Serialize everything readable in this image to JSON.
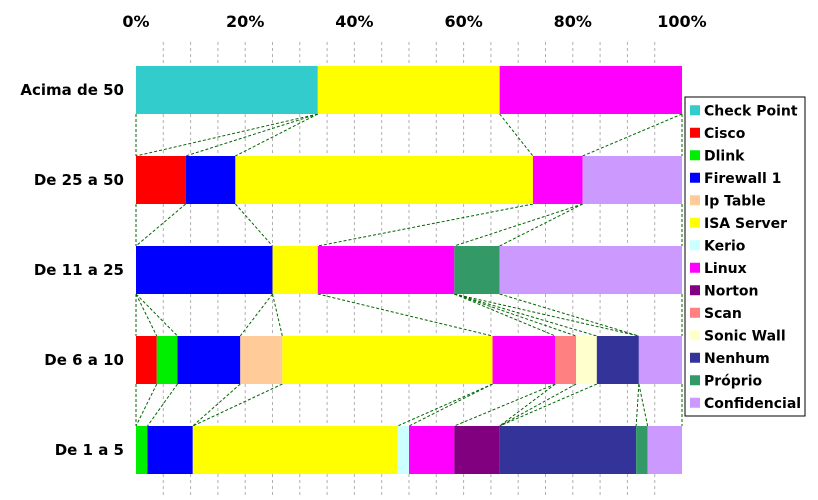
{
  "chart_data": {
    "type": "bar",
    "orientation": "horizontal",
    "stacked": "percent",
    "xlim": [
      0,
      100
    ],
    "x_ticks": [
      "0%",
      "20%",
      "40%",
      "60%",
      "80%",
      "100%"
    ],
    "x_axis_position": "top",
    "grid": "vertical dashed",
    "legend_position": "right",
    "series_lines": true,
    "categories": [
      "Acima de 50",
      "De 25 a 50",
      "De 11 a 25",
      "De 6 a 10",
      "De 1 a 5"
    ],
    "series": [
      {
        "name": "Check Point",
        "color": "#33CCCC",
        "values": [
          33.3,
          0,
          0,
          0,
          0
        ]
      },
      {
        "name": "Cisco",
        "color": "#FF0000",
        "values": [
          0,
          9.1,
          0,
          3.8,
          0
        ]
      },
      {
        "name": "Dlink",
        "color": "#00EE00",
        "values": [
          0,
          0,
          0,
          3.8,
          2.1
        ]
      },
      {
        "name": "Firewall 1",
        "color": "#0000FF",
        "values": [
          0,
          9.1,
          25.0,
          11.5,
          8.3
        ]
      },
      {
        "name": "Ip Table",
        "color": "#FFCC99",
        "values": [
          0,
          0,
          0,
          7.7,
          0
        ]
      },
      {
        "name": "ISA Server",
        "color": "#FFFF00",
        "values": [
          33.3,
          54.5,
          8.3,
          38.5,
          37.5
        ]
      },
      {
        "name": "Kerio",
        "color": "#CCFFFF",
        "values": [
          0,
          0,
          0,
          0,
          2.1
        ]
      },
      {
        "name": "Linux",
        "color": "#FF00FF",
        "values": [
          33.4,
          9.1,
          25.0,
          11.5,
          8.3
        ]
      },
      {
        "name": "Norton",
        "color": "#800080",
        "values": [
          0,
          0,
          0,
          0,
          8.3
        ]
      },
      {
        "name": "Scan",
        "color": "#FF8080",
        "values": [
          0,
          0,
          0,
          3.8,
          0
        ]
      },
      {
        "name": "Sonic Wall",
        "color": "#FFFFCC",
        "values": [
          0,
          0,
          0,
          3.8,
          0
        ]
      },
      {
        "name": "Nenhum",
        "color": "#333399",
        "values": [
          0,
          0,
          0,
          7.7,
          25.0
        ]
      },
      {
        "name": "Próprio",
        "color": "#339966",
        "values": [
          0,
          0,
          8.3,
          0,
          2.1
        ]
      },
      {
        "name": "Confidencial",
        "color": "#CC99FF",
        "values": [
          0,
          18.2,
          33.4,
          7.9,
          6.3
        ]
      }
    ]
  }
}
